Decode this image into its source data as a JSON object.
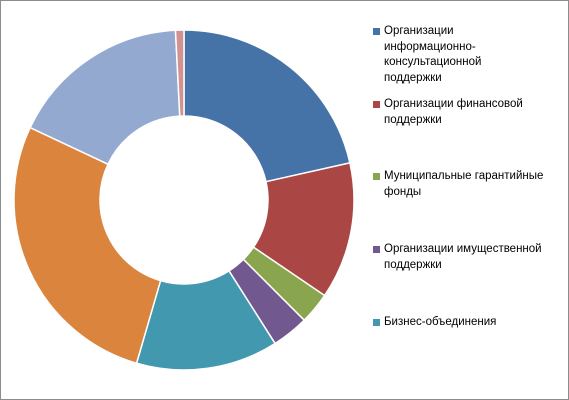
{
  "chart_data": {
    "type": "pie",
    "variant": "donut",
    "title": "",
    "legend_position": "right",
    "series": [
      {
        "categories": [
          "Организации информационно-консультационной поддержки",
          "Организации финансовой поддержки",
          "Муниципальные гарантийные фонды",
          "Организации имущественной поддержки",
          "Бизнес-объединения",
          "",
          "",
          ""
        ],
        "values": [
          21.5,
          13.0,
          3.0,
          3.5,
          13.5,
          27.5,
          17.2,
          0.8
        ],
        "colors": [
          "#4572A7",
          "#AA4643",
          "#89A54E",
          "#71588F",
          "#4198AF",
          "#DB843D",
          "#93A9CF",
          "#D19392"
        ]
      }
    ]
  },
  "legend": {
    "items": [
      {
        "label": "Организации\nинформационно-\nконсультационной\nподдержки",
        "color": "#4572A7"
      },
      {
        "label": "Организации финансовой\nподдержки",
        "color": "#AA4643"
      },
      {
        "label": "Муниципальные гарантийные\nфонды",
        "color": "#89A54E"
      },
      {
        "label": "Организации имущественной\nподдержки",
        "color": "#71588F"
      },
      {
        "label": "Бизнес-объединения",
        "color": "#4198AF"
      }
    ]
  }
}
